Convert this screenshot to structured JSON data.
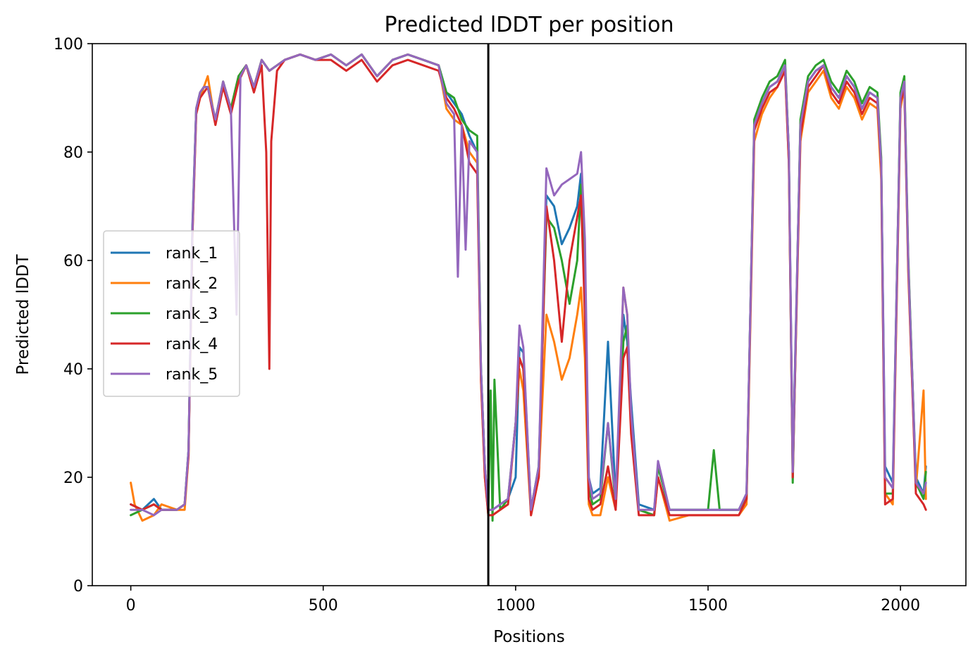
{
  "chart_data": {
    "type": "line",
    "title": "Predicted lDDT per position",
    "xlabel": "Positions",
    "ylabel": "Predicted lDDT",
    "xlim": [
      -100,
      2170
    ],
    "ylim": [
      0,
      100
    ],
    "x_ticks": [
      0,
      500,
      1000,
      1500,
      2000
    ],
    "y_ticks": [
      0,
      20,
      40,
      60,
      80,
      100
    ],
    "grid": false,
    "legend_placement": "center-left",
    "vline": 929,
    "series": [
      {
        "name": "rank_1",
        "color": "#1f77b4",
        "x": [
          0,
          30,
          60,
          80,
          120,
          140,
          150,
          160,
          170,
          180,
          190,
          200,
          220,
          240,
          260,
          280,
          300,
          320,
          340,
          360,
          380,
          400,
          440,
          480,
          520,
          560,
          600,
          640,
          680,
          720,
          760,
          800,
          820,
          840,
          860,
          880,
          900,
          910,
          920,
          929,
          940,
          960,
          980,
          1000,
          1010,
          1020,
          1040,
          1060,
          1080,
          1100,
          1120,
          1140,
          1160,
          1170,
          1180,
          1190,
          1200,
          1220,
          1240,
          1260,
          1280,
          1290,
          1300,
          1320,
          1360,
          1370,
          1400,
          1450,
          1500,
          1550,
          1580,
          1600,
          1620,
          1640,
          1660,
          1680,
          1700,
          1710,
          1720,
          1740,
          1760,
          1780,
          1800,
          1820,
          1840,
          1860,
          1880,
          1900,
          1920,
          1940,
          1950,
          1960,
          1980,
          2000,
          2010,
          2020,
          2040,
          2060,
          2066
        ],
        "values": [
          15,
          14,
          16,
          14,
          14,
          15,
          25,
          66,
          88,
          91,
          92,
          92,
          86,
          93,
          88,
          94,
          96,
          92,
          97,
          95,
          96,
          97,
          98,
          97,
          98,
          96,
          98,
          94,
          97,
          98,
          97,
          96,
          91,
          89,
          87,
          83,
          80,
          40,
          22,
          14,
          14,
          15,
          16,
          20,
          44,
          43,
          14,
          22,
          72,
          70,
          63,
          66,
          70,
          76,
          60,
          20,
          17,
          18,
          45,
          16,
          50,
          45,
          34,
          15,
          14,
          22,
          14,
          14,
          14,
          14,
          14,
          17,
          85,
          89,
          92,
          93,
          96,
          80,
          22,
          85,
          93,
          95,
          96,
          92,
          90,
          94,
          92,
          88,
          91,
          90,
          78,
          22,
          19,
          90,
          93,
          60,
          20,
          17,
          22
        ]
      },
      {
        "name": "rank_2",
        "color": "#ff7f0e",
        "x": [
          0,
          10,
          30,
          60,
          80,
          120,
          140,
          150,
          160,
          170,
          180,
          190,
          200,
          220,
          240,
          260,
          280,
          300,
          320,
          340,
          360,
          380,
          400,
          440,
          480,
          520,
          560,
          600,
          640,
          680,
          720,
          760,
          800,
          820,
          840,
          860,
          880,
          900,
          910,
          920,
          929,
          940,
          960,
          980,
          1000,
          1010,
          1020,
          1040,
          1060,
          1080,
          1100,
          1120,
          1140,
          1160,
          1170,
          1180,
          1190,
          1200,
          1220,
          1240,
          1260,
          1280,
          1290,
          1300,
          1320,
          1360,
          1370,
          1400,
          1450,
          1500,
          1550,
          1580,
          1600,
          1620,
          1640,
          1660,
          1680,
          1700,
          1710,
          1720,
          1740,
          1760,
          1780,
          1800,
          1820,
          1840,
          1860,
          1880,
          1900,
          1920,
          1940,
          1950,
          1960,
          1980,
          2000,
          2010,
          2020,
          2040,
          2060,
          2066
        ],
        "values": [
          19,
          15,
          12,
          13,
          15,
          14,
          14,
          24,
          64,
          87,
          90,
          92,
          94,
          85,
          93,
          88,
          94,
          96,
          92,
          97,
          95,
          96,
          97,
          98,
          97,
          98,
          96,
          98,
          94,
          97,
          98,
          97,
          96,
          88,
          86,
          85,
          80,
          78,
          38,
          20,
          13,
          13,
          14,
          15,
          30,
          40,
          36,
          13,
          20,
          50,
          45,
          38,
          42,
          50,
          55,
          42,
          15,
          13,
          13,
          20,
          14,
          55,
          50,
          30,
          14,
          13,
          20,
          12,
          13,
          13,
          13,
          13,
          15,
          82,
          87,
          90,
          92,
          95,
          78,
          20,
          82,
          91,
          93,
          95,
          90,
          88,
          92,
          90,
          86,
          89,
          88,
          75,
          17,
          15,
          88,
          92,
          58,
          18,
          36,
          16
        ]
      },
      {
        "name": "rank_3",
        "color": "#2ca02c",
        "x": [
          0,
          30,
          60,
          80,
          120,
          140,
          150,
          160,
          170,
          180,
          190,
          200,
          220,
          240,
          260,
          280,
          300,
          320,
          340,
          360,
          380,
          400,
          440,
          480,
          520,
          560,
          600,
          640,
          680,
          720,
          760,
          800,
          820,
          840,
          860,
          880,
          900,
          910,
          920,
          929,
          935,
          940,
          945,
          960,
          980,
          1000,
          1010,
          1020,
          1040,
          1060,
          1080,
          1100,
          1120,
          1140,
          1160,
          1170,
          1180,
          1190,
          1200,
          1220,
          1240,
          1260,
          1280,
          1290,
          1300,
          1320,
          1360,
          1370,
          1400,
          1450,
          1500,
          1515,
          1530,
          1550,
          1580,
          1600,
          1620,
          1640,
          1660,
          1680,
          1700,
          1710,
          1720,
          1740,
          1760,
          1780,
          1800,
          1820,
          1840,
          1860,
          1880,
          1900,
          1920,
          1940,
          1950,
          1960,
          1980,
          2000,
          2010,
          2020,
          2040,
          2060,
          2066
        ],
        "values": [
          13,
          14,
          15,
          14,
          14,
          15,
          25,
          65,
          88,
          91,
          92,
          92,
          86,
          93,
          88,
          94,
          96,
          92,
          97,
          95,
          96,
          97,
          98,
          97,
          98,
          96,
          98,
          94,
          97,
          98,
          97,
          96,
          91,
          90,
          86,
          84,
          83,
          40,
          22,
          13,
          36,
          12,
          38,
          14,
          16,
          30,
          42,
          40,
          14,
          22,
          68,
          66,
          60,
          52,
          60,
          74,
          55,
          18,
          15,
          16,
          30,
          15,
          45,
          48,
          30,
          14,
          13,
          22,
          14,
          14,
          14,
          25,
          14,
          14,
          14,
          16,
          86,
          90,
          93,
          94,
          97,
          80,
          19,
          86,
          94,
          96,
          97,
          93,
          91,
          95,
          93,
          89,
          92,
          91,
          79,
          17,
          17,
          91,
          94,
          61,
          19,
          16,
          21
        ]
      },
      {
        "name": "rank_4",
        "color": "#d62728",
        "x": [
          0,
          30,
          60,
          80,
          120,
          140,
          150,
          160,
          170,
          180,
          190,
          200,
          220,
          240,
          260,
          280,
          300,
          320,
          340,
          352,
          360,
          365,
          380,
          400,
          440,
          480,
          520,
          560,
          600,
          640,
          680,
          720,
          760,
          800,
          820,
          840,
          860,
          880,
          900,
          910,
          920,
          929,
          940,
          960,
          980,
          1000,
          1010,
          1020,
          1040,
          1060,
          1080,
          1100,
          1120,
          1140,
          1160,
          1170,
          1180,
          1190,
          1200,
          1220,
          1240,
          1260,
          1280,
          1290,
          1300,
          1320,
          1360,
          1370,
          1400,
          1450,
          1500,
          1550,
          1580,
          1600,
          1620,
          1640,
          1660,
          1680,
          1700,
          1710,
          1720,
          1740,
          1760,
          1780,
          1800,
          1820,
          1840,
          1860,
          1880,
          1900,
          1920,
          1940,
          1950,
          1960,
          1980,
          2000,
          2010,
          2020,
          2040,
          2060,
          2066
        ],
        "values": [
          15,
          14,
          15,
          14,
          14,
          15,
          24,
          64,
          87,
          90,
          91,
          92,
          85,
          92,
          87,
          93,
          96,
          91,
          96,
          80,
          40,
          82,
          95,
          97,
          98,
          97,
          97,
          95,
          97,
          93,
          96,
          97,
          96,
          95,
          90,
          88,
          85,
          78,
          76,
          38,
          20,
          13,
          13,
          14,
          15,
          30,
          42,
          40,
          13,
          20,
          70,
          60,
          45,
          60,
          68,
          72,
          50,
          16,
          14,
          15,
          22,
          14,
          42,
          44,
          28,
          13,
          13,
          20,
          13,
          13,
          13,
          13,
          13,
          16,
          84,
          88,
          91,
          92,
          95,
          78,
          20,
          83,
          92,
          94,
          96,
          91,
          89,
          93,
          91,
          87,
          90,
          89,
          77,
          15,
          16,
          89,
          92,
          59,
          17,
          15,
          14
        ]
      },
      {
        "name": "rank_5",
        "color": "#9467bd",
        "x": [
          0,
          30,
          60,
          80,
          120,
          140,
          150,
          160,
          170,
          180,
          190,
          200,
          220,
          240,
          260,
          275,
          285,
          300,
          320,
          340,
          360,
          380,
          400,
          440,
          480,
          520,
          560,
          600,
          640,
          680,
          720,
          760,
          800,
          820,
          840,
          850,
          860,
          870,
          880,
          900,
          910,
          920,
          929,
          940,
          960,
          980,
          1000,
          1010,
          1020,
          1040,
          1060,
          1080,
          1100,
          1120,
          1140,
          1160,
          1170,
          1180,
          1190,
          1200,
          1220,
          1240,
          1260,
          1280,
          1290,
          1300,
          1320,
          1360,
          1370,
          1400,
          1450,
          1500,
          1550,
          1580,
          1600,
          1620,
          1640,
          1660,
          1680,
          1700,
          1710,
          1720,
          1740,
          1760,
          1780,
          1800,
          1820,
          1840,
          1860,
          1880,
          1900,
          1920,
          1940,
          1950,
          1960,
          1980,
          2000,
          2010,
          2020,
          2040,
          2060,
          2066
        ],
        "values": [
          14,
          14,
          13,
          14,
          14,
          15,
          25,
          65,
          88,
          91,
          92,
          92,
          86,
          93,
          88,
          50,
          94,
          96,
          92,
          97,
          95,
          96,
          97,
          98,
          97,
          98,
          96,
          98,
          94,
          97,
          98,
          97,
          96,
          89,
          87,
          57,
          85,
          62,
          82,
          80,
          40,
          22,
          14,
          14,
          15,
          16,
          30,
          48,
          44,
          14,
          22,
          77,
          72,
          74,
          75,
          76,
          80,
          64,
          20,
          16,
          17,
          30,
          16,
          55,
          50,
          32,
          14,
          14,
          23,
          14,
          14,
          14,
          14,
          14,
          17,
          85,
          89,
          92,
          93,
          96,
          80,
          21,
          85,
          93,
          95,
          96,
          92,
          90,
          94,
          92,
          88,
          91,
          90,
          78,
          20,
          18,
          90,
          93,
          60,
          19,
          17,
          19
        ]
      }
    ]
  }
}
